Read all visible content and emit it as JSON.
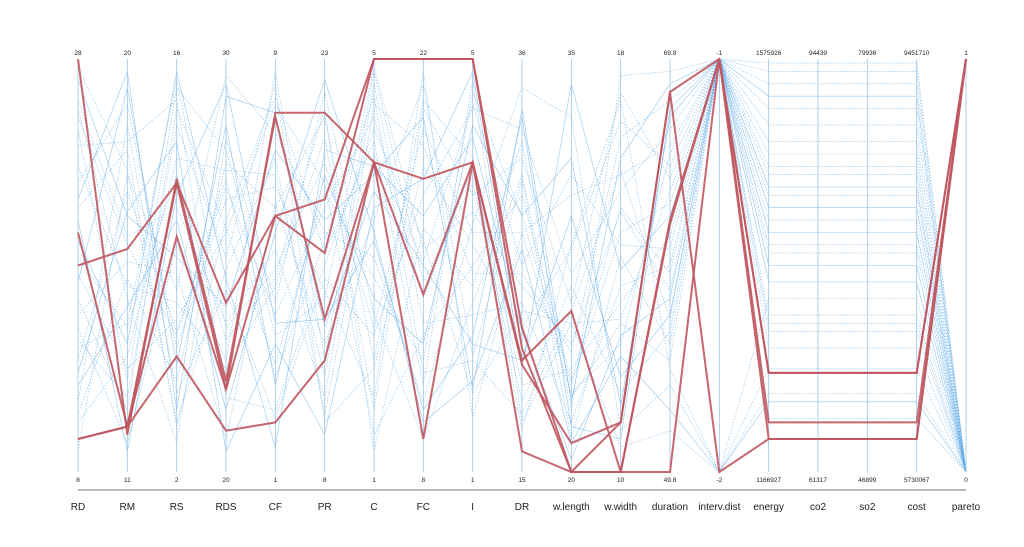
{
  "chart_data": {
    "type": "parallel-coordinates",
    "colors": {
      "background_lines": "#5aa8e6",
      "pareto_lines": "#c0575f",
      "axis": "#9ec5e6"
    },
    "axes": [
      {
        "name": "RD",
        "max": "28",
        "min": "8"
      },
      {
        "name": "RM",
        "max": "20",
        "min": "11"
      },
      {
        "name": "RS",
        "max": "16",
        "min": "2"
      },
      {
        "name": "RDS",
        "max": "30",
        "min": "20"
      },
      {
        "name": "CF",
        "max": "9",
        "min": "1"
      },
      {
        "name": "PR",
        "max": "23",
        "min": "8"
      },
      {
        "name": "C",
        "max": "5",
        "min": "1"
      },
      {
        "name": "FC",
        "max": "22",
        "min": "8"
      },
      {
        "name": "I",
        "max": "5",
        "min": "1"
      },
      {
        "name": "DR",
        "max": "36",
        "min": "15"
      },
      {
        "name": "w.length",
        "max": "35",
        "min": "20"
      },
      {
        "name": "w.width",
        "max": "18",
        "min": "10"
      },
      {
        "name": "duration",
        "max": "69.8",
        "min": "49.8"
      },
      {
        "name": "interv.dist",
        "max": "-1",
        "min": "-2"
      },
      {
        "name": "energy",
        "max": "1575926",
        "min": "1166927"
      },
      {
        "name": "co2",
        "max": "94439",
        "min": "61317"
      },
      {
        "name": "so2",
        "max": "79936",
        "min": "46899"
      },
      {
        "name": "cost",
        "max": "9451710",
        "min": "5730067"
      },
      {
        "name": "pareto",
        "max": "1",
        "min": "0"
      }
    ],
    "pareto_series": [
      [
        1.0,
        0.09,
        0.71,
        0.22,
        0.86,
        0.37,
        0.75,
        0.43,
        0.75,
        0.27,
        0.39,
        0.0,
        0.61,
        1.0,
        0.24,
        0.24,
        0.24,
        0.24,
        1.0
      ],
      [
        0.58,
        0.11,
        0.7,
        0.2,
        0.87,
        0.87,
        0.75,
        0.08,
        0.75,
        0.26,
        0.07,
        0.12,
        0.92,
        1.0,
        0.12,
        0.12,
        0.12,
        0.12,
        1.0
      ],
      [
        0.5,
        0.54,
        0.7,
        0.41,
        0.62,
        0.53,
        1.0,
        1.0,
        1.0,
        0.35,
        0.0,
        0.0,
        0.0,
        1.0,
        0.08,
        0.08,
        0.08,
        0.08,
        1.0
      ],
      [
        0.08,
        0.11,
        0.28,
        0.1,
        0.12,
        0.27,
        0.75,
        0.71,
        0.75,
        0.05,
        0.0,
        0.0,
        0.6,
        1.0,
        0.24,
        0.24,
        0.24,
        0.24,
        1.0
      ],
      [
        0.08,
        0.11,
        0.57,
        0.2,
        0.62,
        0.66,
        1.0,
        1.0,
        1.0,
        0.3,
        0.0,
        0.12,
        0.92,
        0.0,
        0.08,
        0.08,
        0.08,
        0.08,
        1.0
      ]
    ],
    "non_pareto_series": [
      [
        0.95,
        0.62,
        0.52,
        0.4,
        0.78,
        0.61,
        0.72,
        0.86,
        0.2,
        0.88,
        0.17,
        0.76,
        0.94,
        1.0,
        0.91,
        0.91,
        0.91,
        0.91,
        0.0
      ],
      [
        0.83,
        0.22,
        0.93,
        0.78,
        0.33,
        0.42,
        0.98,
        0.54,
        0.63,
        0.45,
        0.31,
        0.63,
        0.44,
        1.0,
        0.77,
        0.77,
        0.77,
        0.77,
        0.0
      ],
      [
        0.64,
        0.78,
        0.11,
        0.61,
        0.91,
        0.53,
        0.8,
        0.21,
        0.95,
        0.12,
        0.36,
        0.06,
        0.1,
        0.0,
        0.25,
        0.25,
        0.25,
        0.25,
        0.0
      ],
      [
        0.52,
        0.35,
        0.72,
        0.32,
        0.47,
        0.88,
        0.05,
        0.59,
        0.45,
        0.8,
        0.18,
        0.36,
        0.27,
        1.0,
        0.61,
        0.61,
        0.61,
        0.61,
        0.0
      ],
      [
        0.46,
        0.93,
        0.26,
        0.84,
        0.21,
        0.72,
        0.42,
        0.31,
        0.84,
        0.62,
        0.76,
        0.16,
        0.86,
        1.0,
        0.46,
        0.46,
        0.46,
        0.46,
        0.0
      ],
      [
        0.38,
        0.51,
        0.48,
        0.08,
        0.65,
        0.31,
        0.61,
        0.94,
        0.28,
        0.71,
        0.08,
        0.52,
        0.31,
        1.0,
        0.72,
        0.72,
        0.72,
        0.72,
        0.0
      ],
      [
        0.32,
        0.18,
        0.84,
        0.52,
        0.94,
        0.12,
        0.25,
        0.74,
        0.55,
        0.35,
        0.54,
        0.85,
        0.74,
        1.0,
        0.55,
        0.55,
        0.55,
        0.55,
        0.0
      ],
      [
        0.27,
        0.68,
        0.34,
        0.69,
        0.38,
        0.64,
        0.86,
        0.42,
        0.74,
        0.21,
        0.25,
        0.41,
        0.57,
        1.0,
        0.38,
        0.38,
        0.38,
        0.38,
        0.0
      ],
      [
        0.21,
        0.4,
        0.61,
        0.15,
        0.58,
        0.95,
        0.58,
        0.12,
        0.22,
        0.54,
        0.07,
        0.28,
        0.15,
        0.0,
        0.17,
        0.17,
        0.17,
        0.17,
        0.0
      ],
      [
        0.17,
        0.84,
        0.19,
        0.44,
        0.13,
        0.47,
        0.33,
        0.67,
        0.88,
        0.83,
        0.48,
        0.68,
        0.83,
        1.0,
        0.88,
        0.88,
        0.88,
        0.88,
        0.0
      ],
      [
        0.12,
        0.28,
        0.76,
        0.73,
        0.72,
        0.23,
        0.94,
        0.36,
        0.38,
        0.41,
        0.12,
        0.45,
        0.5,
        1.0,
        0.67,
        0.67,
        0.67,
        0.67,
        0.0
      ],
      [
        0.74,
        0.45,
        0.41,
        0.25,
        0.45,
        0.81,
        0.15,
        0.88,
        0.67,
        0.76,
        0.41,
        0.92,
        0.71,
        1.0,
        0.99,
        0.99,
        0.99,
        0.99,
        0.0
      ],
      [
        0.66,
        0.97,
        0.15,
        0.91,
        0.87,
        0.35,
        0.68,
        0.5,
        0.31,
        0.27,
        0.62,
        0.23,
        0.38,
        1.0,
        0.5,
        0.5,
        0.5,
        0.5,
        0.0
      ],
      [
        0.42,
        0.15,
        0.88,
        0.59,
        0.26,
        0.68,
        0.47,
        0.27,
        0.92,
        0.62,
        0.21,
        0.58,
        0.65,
        1.0,
        0.8,
        0.8,
        0.8,
        0.8,
        0.0
      ],
      [
        0.9,
        0.57,
        0.64,
        0.36,
        0.54,
        0.18,
        0.89,
        0.79,
        0.48,
        0.48,
        0.29,
        0.81,
        0.9,
        1.0,
        0.94,
        0.94,
        0.94,
        0.94,
        0.0
      ],
      [
        0.05,
        0.72,
        0.44,
        0.96,
        0.82,
        0.58,
        0.52,
        0.17,
        0.6,
        0.93,
        0.86,
        0.1,
        0.21,
        0.0,
        0.19,
        0.19,
        0.19,
        0.19,
        0.0
      ],
      [
        0.56,
        0.31,
        0.97,
        0.47,
        0.06,
        0.78,
        0.74,
        0.62,
        0.81,
        0.34,
        0.03,
        0.33,
        0.42,
        1.0,
        0.58,
        0.58,
        0.58,
        0.58,
        0.0
      ],
      [
        0.7,
        0.89,
        0.3,
        0.66,
        0.69,
        0.44,
        0.18,
        0.97,
        0.13,
        0.58,
        0.67,
        0.72,
        0.79,
        1.0,
        0.74,
        0.74,
        0.74,
        0.74,
        0.0
      ],
      [
        0.35,
        0.07,
        0.55,
        0.27,
        0.97,
        0.27,
        0.97,
        0.46,
        0.7,
        0.17,
        0.45,
        0.19,
        0.34,
        1.0,
        0.34,
        0.34,
        0.34,
        0.34,
        0.0
      ],
      [
        0.88,
        0.42,
        0.07,
        0.81,
        0.41,
        0.92,
        0.38,
        0.08,
        0.41,
        0.72,
        0.15,
        0.96,
        0.97,
        1.0,
        0.97,
        0.97,
        0.97,
        0.97,
        0.0
      ],
      [
        0.24,
        0.63,
        0.8,
        0.05,
        0.31,
        0.09,
        0.64,
        0.71,
        0.97,
        0.25,
        0.94,
        0.49,
        0.62,
        1.0,
        0.69,
        0.69,
        0.69,
        0.69,
        0.0
      ],
      [
        0.48,
        0.25,
        0.37,
        0.58,
        0.89,
        0.7,
        0.09,
        0.33,
        0.5,
        0.67,
        0.22,
        0.64,
        0.48,
        1.0,
        0.3,
        0.3,
        0.3,
        0.3,
        0.0
      ],
      [
        0.79,
        0.8,
        0.9,
        0.18,
        0.15,
        0.5,
        0.83,
        0.56,
        0.19,
        0.39,
        0.36,
        0.37,
        0.68,
        1.0,
        0.84,
        0.84,
        0.84,
        0.84,
        0.0
      ],
      [
        0.14,
        0.47,
        0.22,
        0.75,
        0.64,
        0.86,
        0.27,
        0.9,
        0.76,
        0.1,
        0.55,
        0.9,
        0.25,
        0.0,
        0.42,
        0.42,
        0.42,
        0.42,
        0.0
      ],
      [
        0.61,
        0.05,
        0.67,
        0.94,
        0.36,
        0.37,
        0.56,
        0.15,
        0.33,
        0.86,
        0.11,
        0.08,
        0.88,
        1.0,
        0.64,
        0.64,
        0.64,
        0.64,
        0.0
      ],
      [
        0.98,
        0.73,
        0.12,
        0.49,
        0.76,
        0.14,
        0.77,
        0.51,
        0.89,
        0.5,
        0.72,
        0.55,
        0.54,
        1.0,
        0.53,
        0.53,
        0.53,
        0.53,
        0.0
      ],
      [
        0.3,
        0.36,
        0.95,
        0.35,
        0.49,
        0.75,
        0.35,
        0.83,
        0.58,
        0.58,
        0.19,
        0.31,
        0.77,
        1.0,
        0.13,
        0.13,
        0.13,
        0.13,
        0.0
      ],
      [
        0.86,
        0.55,
        0.33,
        0.71,
        0.23,
        0.56,
        0.91,
        0.24,
        0.27,
        0.14,
        0.39,
        0.73,
        0.37,
        1.0,
        0.36,
        0.36,
        0.36,
        0.36,
        0.0
      ]
    ]
  }
}
